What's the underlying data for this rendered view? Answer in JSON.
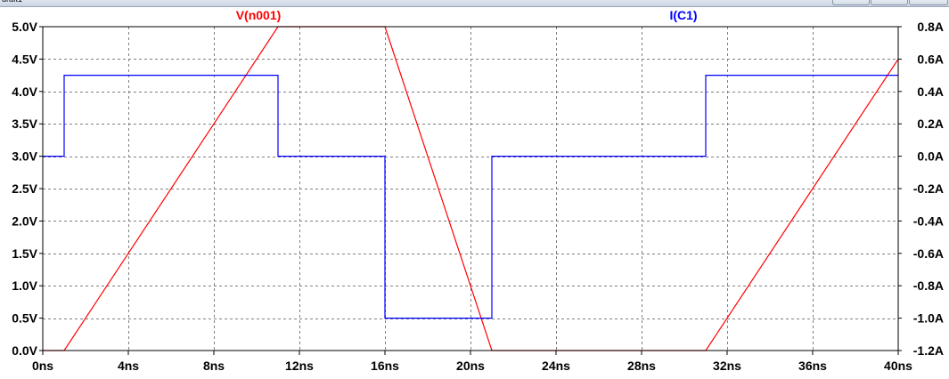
{
  "window": {
    "title": "draft1",
    "controls": [
      "minimize",
      "maximize",
      "close"
    ]
  },
  "chart_data": {
    "type": "line",
    "background": "#ffffff",
    "grid": true,
    "grid_color": "#7f7f7f",
    "axis_color": "#000000",
    "x_axis": {
      "range": [
        0,
        40
      ],
      "ticks": [
        0,
        4,
        8,
        12,
        16,
        20,
        24,
        28,
        32,
        36,
        40
      ],
      "tick_labels": [
        "0ns",
        "4ns",
        "8ns",
        "12ns",
        "16ns",
        "20ns",
        "24ns",
        "28ns",
        "32ns",
        "36ns",
        "40ns"
      ]
    },
    "y_left": {
      "range": [
        0,
        5
      ],
      "ticks": [
        0,
        0.5,
        1,
        1.5,
        2,
        2.5,
        3,
        3.5,
        4,
        4.5,
        5
      ],
      "tick_labels": [
        "0.0V",
        "0.5V",
        "1.0V",
        "1.5V",
        "2.0V",
        "2.5V",
        "3.0V",
        "3.5V",
        "4.0V",
        "4.5V",
        "5.0V"
      ]
    },
    "y_right": {
      "range": [
        -1.2,
        0.8
      ],
      "ticks": [
        -1.2,
        -1.0,
        -0.8,
        -0.6,
        -0.4,
        -0.2,
        0,
        0.2,
        0.4,
        0.6,
        0.8
      ],
      "tick_labels": [
        "-1.2A",
        "-1.0A",
        "-0.8A",
        "-0.6A",
        "-0.4A",
        "-0.2A",
        "0.0A",
        "0.2A",
        "0.4A",
        "0.6A",
        "0.8A"
      ]
    },
    "series": [
      {
        "name": "V(n001)",
        "color": "#ff0000",
        "axis": "left",
        "x": [
          0,
          1,
          11,
          16,
          21,
          31,
          40
        ],
        "y": [
          0,
          0,
          5,
          5,
          0,
          0,
          4.5
        ]
      },
      {
        "name": "I(C1)",
        "color": "#0000ff",
        "axis": "right",
        "x": [
          0,
          1,
          1,
          11,
          11,
          16,
          16,
          21,
          21,
          31,
          31,
          40
        ],
        "y": [
          0,
          0,
          0.5,
          0.5,
          0,
          0,
          -1.0,
          -1.0,
          0,
          0,
          0.5,
          0.5
        ]
      }
    ]
  }
}
